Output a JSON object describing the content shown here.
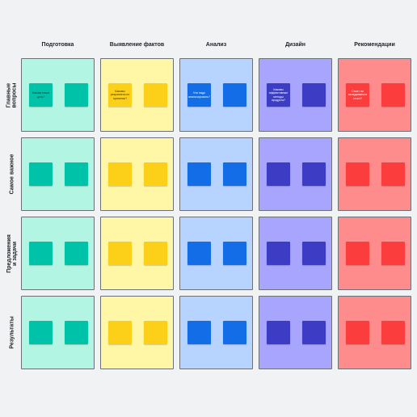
{
  "columns": [
    {
      "label": "Подготовка",
      "color": "#b3f5e3",
      "note_color": "#00c2a8",
      "text_color": "#0b3d34"
    },
    {
      "label": "Выявление фактов",
      "color": "#fff7a6",
      "note_color": "#fcd019",
      "text_color": "#3d3000"
    },
    {
      "label": "Анализ",
      "color": "#b7d3ff",
      "note_color": "#126de6",
      "text_color": "#ffffff"
    },
    {
      "label": "Дизайн",
      "color": "#a8a5ff",
      "note_color": "#3c3dc4",
      "text_color": "#ffffff"
    },
    {
      "label": "Рекомендации",
      "color": "#ff8c8c",
      "note_color": "#fc3d3d",
      "text_color": "#ffffff"
    }
  ],
  "rows": [
    {
      "label": "Главные вопросы"
    },
    {
      "label": "Самое важное"
    },
    {
      "label": "Предложения и задачи"
    },
    {
      "label": "Результаты"
    }
  ],
  "notes": {
    "0-0": "Какова наша цель?",
    "0-1": "Каковы результаты их принятия?",
    "0-2": "Что надо анализировать?",
    "0-3": "Каковы эффективные методы продукта?",
    "0-4": "Стоит ли вкладываться стоит?"
  }
}
